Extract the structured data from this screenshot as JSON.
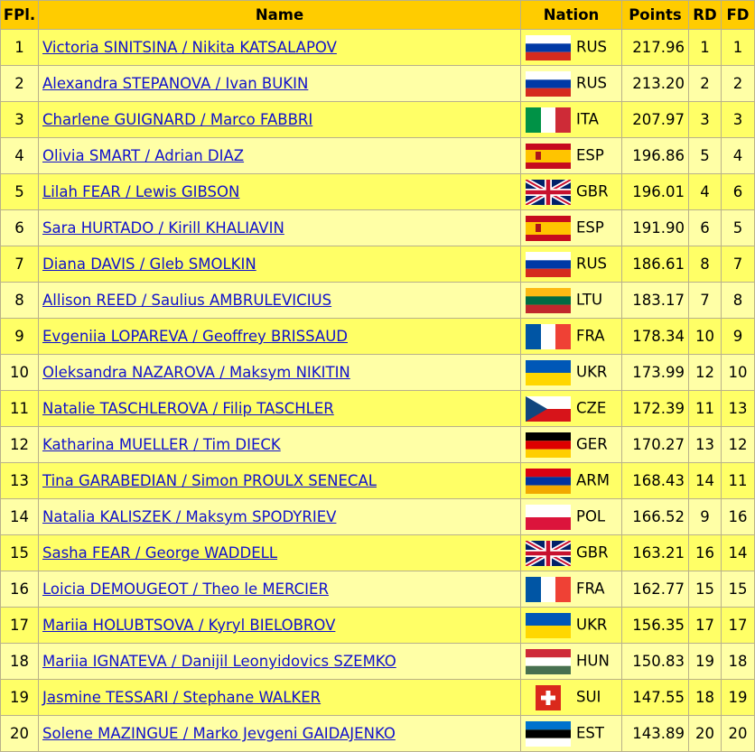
{
  "table": {
    "header": [
      "FPl.",
      "Name",
      "Nation",
      "Points",
      "RD",
      "FD"
    ],
    "rows": [
      [
        "1",
        "Victoria SINITSINA / Nikita KATSALAPOV",
        "RUS",
        "217.96",
        "1",
        "1"
      ],
      [
        "2",
        "Alexandra STEPANOVA / Ivan BUKIN",
        "RUS",
        "213.20",
        "2",
        "2"
      ],
      [
        "3",
        "Charlene GUIGNARD / Marco FABBRI",
        "ITA",
        "207.97",
        "3",
        "3"
      ],
      [
        "4",
        "Olivia SMART / Adrian DIAZ",
        "ESP",
        "196.86",
        "5",
        "4"
      ],
      [
        "5",
        "Lilah FEAR / Lewis GIBSON",
        "GBR",
        "196.01",
        "4",
        "6"
      ],
      [
        "6",
        "Sara HURTADO / Kirill KHALIAVIN",
        "ESP",
        "191.90",
        "6",
        "5"
      ],
      [
        "7",
        "Diana DAVIS / Gleb SMOLKIN",
        "RUS",
        "186.61",
        "8",
        "7"
      ],
      [
        "8",
        "Allison REED / Saulius AMBRULEVICIUS",
        "LTU",
        "183.17",
        "7",
        "8"
      ],
      [
        "9",
        "Evgeniia LOPAREVA / Geoffrey BRISSAUD",
        "FRA",
        "178.34",
        "10",
        "9"
      ],
      [
        "10",
        "Oleksandra NAZAROVA / Maksym NIKITIN",
        "UKR",
        "173.99",
        "12",
        "10"
      ],
      [
        "11",
        "Natalie TASCHLEROVA / Filip TASCHLER",
        "CZE",
        "172.39",
        "11",
        "13"
      ],
      [
        "12",
        "Katharina MUELLER / Tim DIECK",
        "GER",
        "170.27",
        "13",
        "12"
      ],
      [
        "13",
        "Tina GARABEDIAN / Simon PROULX SENECAL",
        "ARM",
        "168.43",
        "14",
        "11"
      ],
      [
        "14",
        "Natalia KALISZEK / Maksym SPODYRIEV",
        "POL",
        "166.52",
        "9",
        "16"
      ],
      [
        "15",
        "Sasha FEAR / George WADDELL",
        "GBR",
        "163.21",
        "16",
        "14"
      ],
      [
        "16",
        "Loicia DEMOUGEOT / Theo le MERCIER",
        "FRA",
        "162.77",
        "15",
        "15"
      ],
      [
        "17",
        "Mariia HOLUBTSOVA / Kyryl BIELOBROV",
        "UKR",
        "156.35",
        "17",
        "17"
      ],
      [
        "18",
        "Mariia IGNATEVA / Danijil Leonyidovics SZEMKO",
        "HUN",
        "150.83",
        "19",
        "18"
      ],
      [
        "19",
        "Jasmine TESSARI / Stephane WALKER",
        "SUI",
        "147.55",
        "18",
        "19"
      ],
      [
        "20",
        "Solene MAZINGUE / Marko Jevgeni GAIDAJENKO",
        "EST",
        "143.89",
        "20",
        "20"
      ]
    ]
  }
}
